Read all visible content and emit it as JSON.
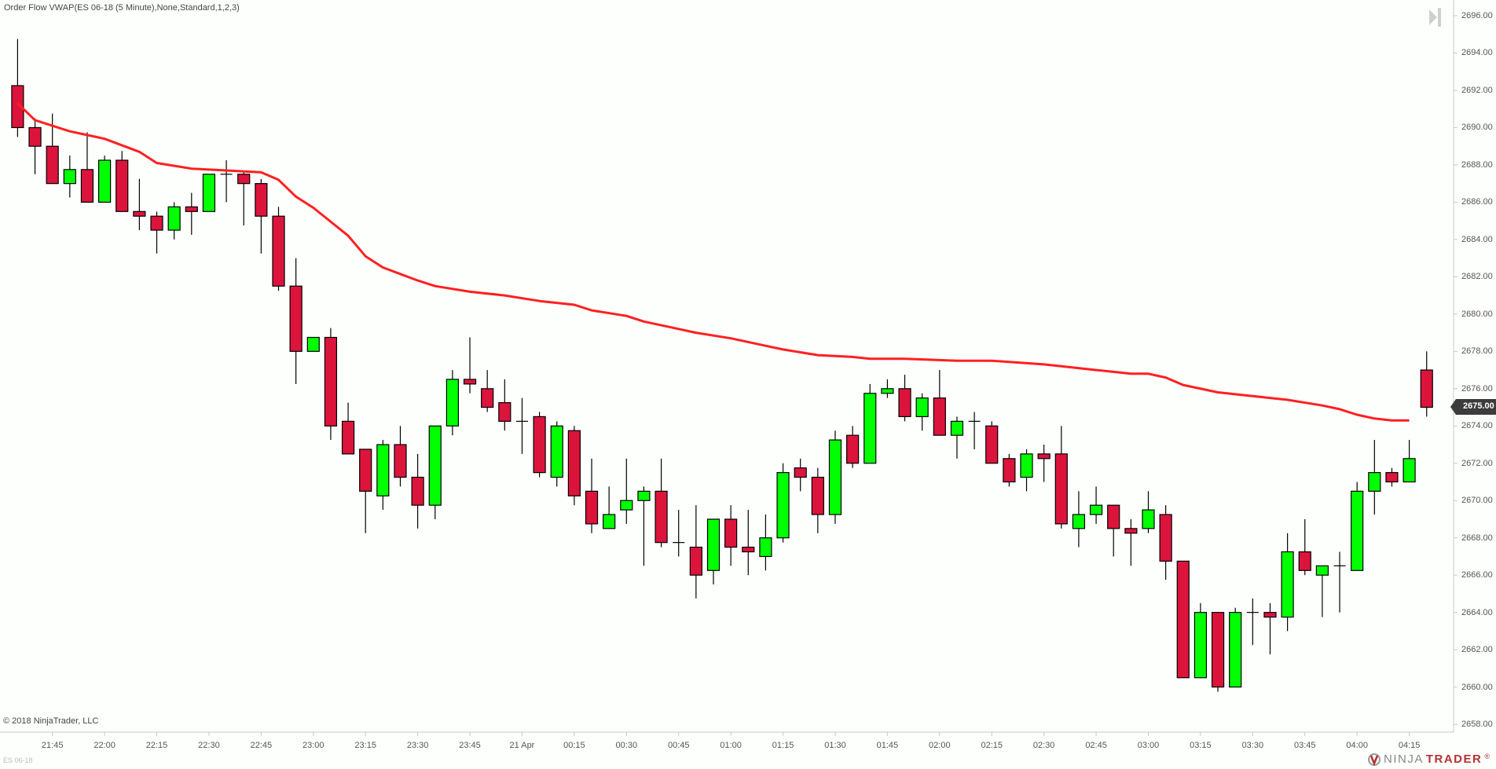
{
  "header": {
    "indicator_title": "Order Flow VWAP(ES 06-18 (5 Minute),None,Standard,1,2,3)"
  },
  "footer": {
    "copyright": "© 2018 NinjaTrader, LLC",
    "instrument": "ES 06-18",
    "logo_left": "NINJA",
    "logo_right": "TRADER",
    "logo_mark": "®"
  },
  "colors": {
    "up": "#00ff00",
    "down": "#dc143c",
    "wick": "#000000",
    "vwap": "#ff2020",
    "axis": "#c8c8c8",
    "current_price_bg": "#3c3c3c"
  },
  "current_price": "2675.00",
  "chart_data": {
    "type": "candlestick",
    "title": "Order Flow VWAP(ES 06-18 (5 Minute),None,Standard,1,2,3)",
    "instrument": "ES 06-18",
    "interval": "5 Minute",
    "ylim": [
      2657.5,
      2696.5
    ],
    "y_ticks": [
      "2696.00",
      "2694.00",
      "2692.00",
      "2690.00",
      "2688.00",
      "2686.00",
      "2684.00",
      "2682.00",
      "2680.00",
      "2678.00",
      "2676.00",
      "2674.00",
      "2672.00",
      "2670.00",
      "2668.00",
      "2666.00",
      "2664.00",
      "2662.00",
      "2660.00",
      "2658.00"
    ],
    "x_ticks": [
      {
        "label": "21:45",
        "bar": 2
      },
      {
        "label": "22:00",
        "bar": 5
      },
      {
        "label": "22:15",
        "bar": 8
      },
      {
        "label": "22:30",
        "bar": 11
      },
      {
        "label": "22:45",
        "bar": 14
      },
      {
        "label": "23:00",
        "bar": 17
      },
      {
        "label": "23:15",
        "bar": 20
      },
      {
        "label": "23:30",
        "bar": 23
      },
      {
        "label": "23:45",
        "bar": 26
      },
      {
        "label": "21 Apr",
        "bar": 29
      },
      {
        "label": "00:15",
        "bar": 32
      },
      {
        "label": "00:30",
        "bar": 35
      },
      {
        "label": "00:45",
        "bar": 38
      },
      {
        "label": "01:00",
        "bar": 41
      },
      {
        "label": "01:15",
        "bar": 44
      },
      {
        "label": "01:30",
        "bar": 47
      },
      {
        "label": "01:45",
        "bar": 50
      },
      {
        "label": "02:00",
        "bar": 53
      },
      {
        "label": "02:15",
        "bar": 56
      },
      {
        "label": "02:30",
        "bar": 59
      },
      {
        "label": "02:45",
        "bar": 62
      },
      {
        "label": "03:00",
        "bar": 65
      },
      {
        "label": "03:15",
        "bar": 68
      },
      {
        "label": "03:30",
        "bar": 71
      },
      {
        "label": "03:45",
        "bar": 74
      },
      {
        "label": "04:00",
        "bar": 77
      },
      {
        "label": "04:15",
        "bar": 80
      }
    ],
    "grid": false,
    "series": [
      {
        "name": "ES 06-18 (5 Minute)",
        "fields": [
          "open",
          "high",
          "low",
          "close"
        ],
        "values": [
          [
            2692.25,
            2694.75,
            2689.5,
            2690.0
          ],
          [
            2690.0,
            2690.5,
            2687.5,
            2689.0
          ],
          [
            2689.0,
            2690.75,
            2687.0,
            2687.0
          ],
          [
            2687.0,
            2688.5,
            2686.25,
            2687.75
          ],
          [
            2687.75,
            2689.75,
            2686.0,
            2686.0
          ],
          [
            2686.0,
            2688.5,
            2686.0,
            2688.25
          ],
          [
            2688.25,
            2688.75,
            2685.5,
            2685.5
          ],
          [
            2685.5,
            2687.25,
            2684.5,
            2685.25
          ],
          [
            2685.25,
            2685.5,
            2683.25,
            2684.5
          ],
          [
            2684.5,
            2686.0,
            2684.0,
            2685.75
          ],
          [
            2685.75,
            2686.5,
            2684.25,
            2685.5
          ],
          [
            2685.5,
            2687.5,
            2685.5,
            2687.5
          ],
          [
            2687.5,
            2688.25,
            2686.0,
            2687.5
          ],
          [
            2687.5,
            2687.6,
            2684.75,
            2687.0
          ],
          [
            2687.0,
            2687.25,
            2683.25,
            2685.25
          ],
          [
            2685.25,
            2685.75,
            2681.25,
            2681.5
          ],
          [
            2681.5,
            2683.0,
            2676.25,
            2678.0
          ],
          [
            2678.0,
            2678.75,
            2678.0,
            2678.75
          ],
          [
            2678.75,
            2679.25,
            2673.25,
            2674.0
          ],
          [
            2674.25,
            2675.25,
            2672.5,
            2672.5
          ],
          [
            2672.75,
            2672.75,
            2668.25,
            2670.5
          ],
          [
            2670.25,
            2673.25,
            2669.5,
            2673.0
          ],
          [
            2673.0,
            2674.0,
            2670.75,
            2671.25
          ],
          [
            2671.25,
            2672.5,
            2668.5,
            2669.75
          ],
          [
            2669.75,
            2674.0,
            2669.0,
            2674.0
          ],
          [
            2674.0,
            2677.0,
            2673.5,
            2676.5
          ],
          [
            2676.5,
            2678.75,
            2675.75,
            2676.25
          ],
          [
            2676.0,
            2677.0,
            2674.75,
            2675.0
          ],
          [
            2675.25,
            2676.5,
            2673.75,
            2674.25
          ],
          [
            2674.25,
            2675.5,
            2672.5,
            2674.25
          ],
          [
            2674.5,
            2674.75,
            2671.25,
            2671.5
          ],
          [
            2671.25,
            2674.25,
            2670.75,
            2674.0
          ],
          [
            2673.75,
            2674.0,
            2669.75,
            2670.25
          ],
          [
            2670.5,
            2672.25,
            2668.25,
            2668.75
          ],
          [
            2668.5,
            2670.75,
            2668.5,
            2669.25
          ],
          [
            2669.5,
            2672.25,
            2668.75,
            2670.0
          ],
          [
            2670.0,
            2670.75,
            2666.5,
            2670.5
          ],
          [
            2670.5,
            2672.25,
            2667.5,
            2667.75
          ],
          [
            2667.75,
            2669.5,
            2667.0,
            2667.75
          ],
          [
            2667.5,
            2669.75,
            2664.75,
            2666.0
          ],
          [
            2666.25,
            2669.0,
            2665.5,
            2669.0
          ],
          [
            2669.0,
            2669.75,
            2666.5,
            2667.5
          ],
          [
            2667.5,
            2669.5,
            2666.0,
            2667.25
          ],
          [
            2667.0,
            2669.25,
            2666.25,
            2668.0
          ],
          [
            2668.0,
            2672.0,
            2667.75,
            2671.5
          ],
          [
            2671.75,
            2672.25,
            2670.5,
            2671.25
          ],
          [
            2671.25,
            2671.75,
            2668.25,
            2669.25
          ],
          [
            2669.25,
            2673.75,
            2668.75,
            2673.25
          ],
          [
            2673.5,
            2674.0,
            2671.75,
            2672.0
          ],
          [
            2672.0,
            2676.25,
            2672.0,
            2675.75
          ],
          [
            2675.75,
            2676.5,
            2675.5,
            2676.0
          ],
          [
            2676.0,
            2676.75,
            2674.25,
            2674.5
          ],
          [
            2674.5,
            2675.75,
            2673.75,
            2675.5
          ],
          [
            2675.5,
            2677.0,
            2673.5,
            2673.5
          ],
          [
            2673.5,
            2674.5,
            2672.25,
            2674.25
          ],
          [
            2674.25,
            2674.75,
            2672.75,
            2674.25
          ],
          [
            2674.0,
            2674.25,
            2672.0,
            2672.0
          ],
          [
            2672.25,
            2672.5,
            2670.75,
            2671.0
          ],
          [
            2671.25,
            2672.75,
            2670.5,
            2672.5
          ],
          [
            2672.5,
            2673.0,
            2671.0,
            2672.25
          ],
          [
            2672.5,
            2674.0,
            2668.5,
            2668.75
          ],
          [
            2668.5,
            2670.5,
            2667.5,
            2669.25
          ],
          [
            2669.25,
            2670.75,
            2668.75,
            2669.75
          ],
          [
            2669.75,
            2669.75,
            2667.0,
            2668.5
          ],
          [
            2668.5,
            2669.0,
            2666.5,
            2668.25
          ],
          [
            2668.5,
            2670.5,
            2668.25,
            2669.5
          ],
          [
            2669.25,
            2669.75,
            2665.75,
            2666.75
          ],
          [
            2666.75,
            2666.75,
            2660.5,
            2660.5
          ],
          [
            2660.5,
            2664.5,
            2660.5,
            2664.0
          ],
          [
            2664.0,
            2664.0,
            2659.75,
            2660.0
          ],
          [
            2660.0,
            2664.25,
            2660.0,
            2664.0
          ],
          [
            2664.0,
            2664.75,
            2662.25,
            2664.0
          ],
          [
            2664.0,
            2664.5,
            2661.75,
            2663.75
          ],
          [
            2663.75,
            2668.25,
            2663.0,
            2667.25
          ],
          [
            2667.25,
            2669.0,
            2666.0,
            2666.25
          ],
          [
            2666.0,
            2666.5,
            2663.75,
            2666.5
          ],
          [
            2666.5,
            2667.25,
            2664.0,
            2666.5
          ],
          [
            2666.25,
            2671.0,
            2666.25,
            2670.5
          ],
          [
            2670.5,
            2673.25,
            2669.25,
            2671.5
          ],
          [
            2671.5,
            2671.75,
            2670.75,
            2671.0
          ],
          [
            2671.0,
            2673.25,
            2671.0,
            2672.25
          ],
          [
            2677.0,
            2678.0,
            2674.5,
            2675.0
          ]
        ]
      },
      {
        "name": "Order Flow VWAP",
        "type": "line",
        "points": [
          [
            0,
            2691.3
          ],
          [
            1,
            2690.4
          ],
          [
            3,
            2689.8
          ],
          [
            4,
            2689.6
          ],
          [
            5,
            2689.4
          ],
          [
            7,
            2688.7
          ],
          [
            8,
            2688.1
          ],
          [
            10,
            2687.8
          ],
          [
            12,
            2687.7
          ],
          [
            14,
            2687.6
          ],
          [
            15,
            2687.2
          ],
          [
            16,
            2686.3
          ],
          [
            17,
            2685.7
          ],
          [
            19,
            2684.2
          ],
          [
            20,
            2683.1
          ],
          [
            21,
            2682.5
          ],
          [
            23,
            2681.8
          ],
          [
            24,
            2681.5
          ],
          [
            26,
            2681.2
          ],
          [
            28,
            2681.0
          ],
          [
            30,
            2680.7
          ],
          [
            32,
            2680.5
          ],
          [
            33,
            2680.2
          ],
          [
            35,
            2679.9
          ],
          [
            36,
            2679.6
          ],
          [
            38,
            2679.2
          ],
          [
            39,
            2679.0
          ],
          [
            41,
            2678.7
          ],
          [
            43,
            2678.3
          ],
          [
            44,
            2678.1
          ],
          [
            46,
            2677.8
          ],
          [
            48,
            2677.7
          ],
          [
            49,
            2677.6
          ],
          [
            51,
            2677.6
          ],
          [
            54,
            2677.5
          ],
          [
            56,
            2677.5
          ],
          [
            59,
            2677.3
          ],
          [
            60,
            2677.2
          ],
          [
            62,
            2677.0
          ],
          [
            63,
            2676.9
          ],
          [
            64,
            2676.8
          ],
          [
            65,
            2676.8
          ],
          [
            66,
            2676.6
          ],
          [
            67,
            2676.2
          ],
          [
            69,
            2675.8
          ],
          [
            71,
            2675.6
          ],
          [
            73,
            2675.4
          ],
          [
            75,
            2675.1
          ],
          [
            76,
            2674.9
          ],
          [
            77,
            2674.6
          ],
          [
            78,
            2674.4
          ],
          [
            79,
            2674.3
          ],
          [
            80,
            2674.3
          ]
        ]
      }
    ]
  }
}
